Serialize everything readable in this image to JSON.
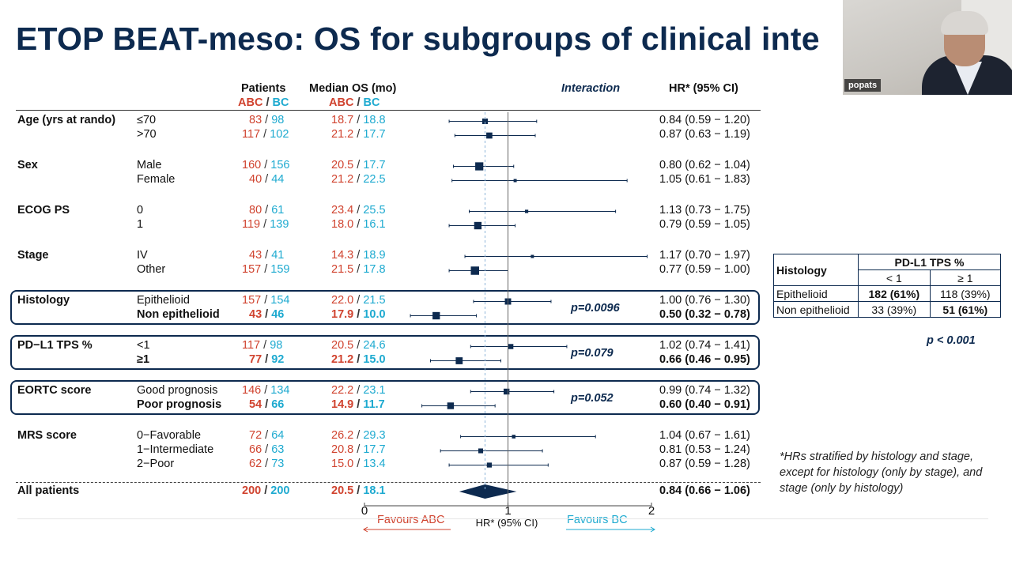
{
  "title": "ETOP BEAT-meso: OS for subgroups of clinical inte",
  "webcam": {
    "name": "popats"
  },
  "headers": {
    "patients": "Patients",
    "median_os": "Median OS (mo)",
    "arm_abc": "ABC",
    "arm_bc": "BC",
    "slash": "/",
    "interaction": "Interaction",
    "hr": "HR* (95% CI)"
  },
  "groups": [
    {
      "label": "Age (yrs at rando)",
      "boxed": false,
      "pval": "",
      "rows": [
        {
          "label": "≤70",
          "n_abc": "83",
          "n_bc": "98",
          "os_abc": "18.7",
          "os_bc": "18.8",
          "hr_text": "0.84 (0.59 − 1.20)",
          "hr": 0.84,
          "lo": 0.59,
          "hi": 1.2,
          "bold": false
        },
        {
          "label": ">70",
          "n_abc": "117",
          "n_bc": "102",
          "os_abc": "21.2",
          "os_bc": "17.7",
          "hr_text": "0.87 (0.63 − 1.19)",
          "hr": 0.87,
          "lo": 0.63,
          "hi": 1.19,
          "bold": false
        }
      ]
    },
    {
      "label": "Sex",
      "boxed": false,
      "pval": "",
      "rows": [
        {
          "label": "Male",
          "n_abc": "160",
          "n_bc": "156",
          "os_abc": "20.5",
          "os_bc": "17.7",
          "hr_text": "0.80 (0.62 − 1.04)",
          "hr": 0.8,
          "lo": 0.62,
          "hi": 1.04,
          "bold": false
        },
        {
          "label": "Female",
          "n_abc": "40",
          "n_bc": "44",
          "os_abc": "21.2",
          "os_bc": "22.5",
          "hr_text": "1.05 (0.61 − 1.83)",
          "hr": 1.05,
          "lo": 0.61,
          "hi": 1.83,
          "bold": false
        }
      ]
    },
    {
      "label": "ECOG PS",
      "boxed": false,
      "pval": "",
      "rows": [
        {
          "label": "0",
          "n_abc": "80",
          "n_bc": "61",
          "os_abc": "23.4",
          "os_bc": "25.5",
          "hr_text": "1.13 (0.73 − 1.75)",
          "hr": 1.13,
          "lo": 0.73,
          "hi": 1.75,
          "bold": false
        },
        {
          "label": "1",
          "n_abc": "119",
          "n_bc": "139",
          "os_abc": "18.0",
          "os_bc": "16.1",
          "hr_text": "0.79 (0.59 − 1.05)",
          "hr": 0.79,
          "lo": 0.59,
          "hi": 1.05,
          "bold": false
        }
      ]
    },
    {
      "label": "Stage",
      "boxed": false,
      "pval": "",
      "rows": [
        {
          "label": "IV",
          "n_abc": "43",
          "n_bc": "41",
          "os_abc": "14.3",
          "os_bc": "18.9",
          "hr_text": "1.17 (0.70 − 1.97)",
          "hr": 1.17,
          "lo": 0.7,
          "hi": 1.97,
          "bold": false
        },
        {
          "label": "Other",
          "n_abc": "157",
          "n_bc": "159",
          "os_abc": "21.5",
          "os_bc": "17.8",
          "hr_text": "0.77 (0.59 − 1.00)",
          "hr": 0.77,
          "lo": 0.59,
          "hi": 1.0,
          "bold": false
        }
      ]
    },
    {
      "label": "Histology",
      "boxed": true,
      "pval": "p=0.0096",
      "rows": [
        {
          "label": "Epithelioid",
          "n_abc": "157",
          "n_bc": "154",
          "os_abc": "22.0",
          "os_bc": "21.5",
          "hr_text": "1.00 (0.76 − 1.30)",
          "hr": 1.0,
          "lo": 0.76,
          "hi": 1.3,
          "bold": false
        },
        {
          "label": "Non epithelioid",
          "n_abc": "43",
          "n_bc": "46",
          "os_abc": "17.9",
          "os_bc": "10.0",
          "hr_text": "0.50 (0.32 − 0.78)",
          "hr": 0.5,
          "lo": 0.32,
          "hi": 0.78,
          "bold": true
        }
      ]
    },
    {
      "label": "PD−L1 TPS %",
      "boxed": true,
      "pval": "p=0.079",
      "rows": [
        {
          "label": "<1",
          "n_abc": "117",
          "n_bc": "98",
          "os_abc": "20.5",
          "os_bc": "24.6",
          "hr_text": "1.02 (0.74 − 1.41)",
          "hr": 1.02,
          "lo": 0.74,
          "hi": 1.41,
          "bold": false
        },
        {
          "label": "≥1",
          "n_abc": "77",
          "n_bc": "92",
          "os_abc": "21.2",
          "os_bc": "15.0",
          "hr_text": "0.66 (0.46 − 0.95)",
          "hr": 0.66,
          "lo": 0.46,
          "hi": 0.95,
          "bold": true
        }
      ]
    },
    {
      "label": "EORTC score",
      "boxed": true,
      "pval": "p=0.052",
      "rows": [
        {
          "label": "Good prognosis",
          "n_abc": "146",
          "n_bc": "134",
          "os_abc": "22.2",
          "os_bc": "23.1",
          "hr_text": "0.99 (0.74 − 1.32)",
          "hr": 0.99,
          "lo": 0.74,
          "hi": 1.32,
          "bold": false
        },
        {
          "label": "Poor prognosis",
          "n_abc": "54",
          "n_bc": "66",
          "os_abc": "14.9",
          "os_bc": "11.7",
          "hr_text": "0.60 (0.40 − 0.91)",
          "hr": 0.6,
          "lo": 0.4,
          "hi": 0.91,
          "bold": true
        }
      ]
    },
    {
      "label": "MRS score",
      "boxed": false,
      "pval": "",
      "rows": [
        {
          "label": "0−Favorable",
          "n_abc": "72",
          "n_bc": "64",
          "os_abc": "26.2",
          "os_bc": "29.3",
          "hr_text": "1.04 (0.67 − 1.61)",
          "hr": 1.04,
          "lo": 0.67,
          "hi": 1.61,
          "bold": false
        },
        {
          "label": "1−Intermediate",
          "n_abc": "66",
          "n_bc": "63",
          "os_abc": "20.8",
          "os_bc": "17.7",
          "hr_text": "0.81 (0.53 − 1.24)",
          "hr": 0.81,
          "lo": 0.53,
          "hi": 1.24,
          "bold": false
        },
        {
          "label": "2−Poor",
          "n_abc": "62",
          "n_bc": "73",
          "os_abc": "15.0",
          "os_bc": "13.4",
          "hr_text": "0.87 (0.59 − 1.28)",
          "hr": 0.87,
          "lo": 0.59,
          "hi": 1.28,
          "bold": false
        }
      ]
    }
  ],
  "overall": {
    "label": "All patients",
    "n_abc": "200",
    "n_bc": "200",
    "os_abc": "20.5",
    "os_bc": "18.1",
    "hr_text": "0.84 (0.66 − 1.06)",
    "hr": 0.84,
    "lo": 0.66,
    "hi": 1.06
  },
  "axis": {
    "ticks": [
      "0",
      "1",
      "2"
    ],
    "label": "HR* (95% CI)",
    "favours_left": "Favours ABC",
    "favours_right": "Favours BC"
  },
  "chart_data": {
    "type": "forest",
    "xlim": [
      0,
      2
    ],
    "reference_line": 1,
    "xlabel": "HR* (95% CI)",
    "rows": [
      {
        "subgroup": "Age (yrs at rando)",
        "category": "≤70",
        "hr": 0.84,
        "lo": 0.59,
        "hi": 1.2
      },
      {
        "subgroup": "Age (yrs at rando)",
        "category": ">70",
        "hr": 0.87,
        "lo": 0.63,
        "hi": 1.19
      },
      {
        "subgroup": "Sex",
        "category": "Male",
        "hr": 0.8,
        "lo": 0.62,
        "hi": 1.04
      },
      {
        "subgroup": "Sex",
        "category": "Female",
        "hr": 1.05,
        "lo": 0.61,
        "hi": 1.83
      },
      {
        "subgroup": "ECOG PS",
        "category": "0",
        "hr": 1.13,
        "lo": 0.73,
        "hi": 1.75
      },
      {
        "subgroup": "ECOG PS",
        "category": "1",
        "hr": 0.79,
        "lo": 0.59,
        "hi": 1.05
      },
      {
        "subgroup": "Stage",
        "category": "IV",
        "hr": 1.17,
        "lo": 0.7,
        "hi": 1.97
      },
      {
        "subgroup": "Stage",
        "category": "Other",
        "hr": 0.77,
        "lo": 0.59,
        "hi": 1.0
      },
      {
        "subgroup": "Histology",
        "category": "Epithelioid",
        "hr": 1.0,
        "lo": 0.76,
        "hi": 1.3
      },
      {
        "subgroup": "Histology",
        "category": "Non epithelioid",
        "hr": 0.5,
        "lo": 0.32,
        "hi": 0.78
      },
      {
        "subgroup": "PD−L1 TPS %",
        "category": "<1",
        "hr": 1.02,
        "lo": 0.74,
        "hi": 1.41
      },
      {
        "subgroup": "PD−L1 TPS %",
        "category": "≥1",
        "hr": 0.66,
        "lo": 0.46,
        "hi": 0.95
      },
      {
        "subgroup": "EORTC score",
        "category": "Good prognosis",
        "hr": 0.99,
        "lo": 0.74,
        "hi": 1.32
      },
      {
        "subgroup": "EORTC score",
        "category": "Poor prognosis",
        "hr": 0.6,
        "lo": 0.4,
        "hi": 0.91
      },
      {
        "subgroup": "MRS score",
        "category": "0−Favorable",
        "hr": 1.04,
        "lo": 0.67,
        "hi": 1.61
      },
      {
        "subgroup": "MRS score",
        "category": "1−Intermediate",
        "hr": 0.81,
        "lo": 0.53,
        "hi": 1.24
      },
      {
        "subgroup": "MRS score",
        "category": "2−Poor",
        "hr": 0.87,
        "lo": 0.59,
        "hi": 1.28
      },
      {
        "subgroup": "All patients",
        "category": "",
        "hr": 0.84,
        "lo": 0.66,
        "hi": 1.06
      }
    ],
    "interaction_p": {
      "Histology": "p=0.0096",
      "PD−L1 TPS %": "p=0.079",
      "EORTC score": "p=0.052"
    }
  },
  "side_table": {
    "col_header": "Histology",
    "group_header": "PD-L1 TPS %",
    "sub_headers": [
      "< 1",
      "≥ 1"
    ],
    "rows": [
      {
        "label": "Epithelioid",
        "lt1": "182 (61%)",
        "ge1": "118 (39%)",
        "bold_cell": "lt1"
      },
      {
        "label": "Non epithelioid",
        "lt1": "33 (39%)",
        "ge1": "51 (61%)",
        "bold_cell": "ge1"
      }
    ],
    "pvalue": "p < 0.001"
  },
  "footnote": "*HRs stratified by histology and stage, except for histology (only by stage), and stage (only by histology)",
  "colors": {
    "title": "#0d2a4f",
    "abc": "#d0432f",
    "bc": "#1eaad0",
    "marker": "#0d2a4f"
  }
}
